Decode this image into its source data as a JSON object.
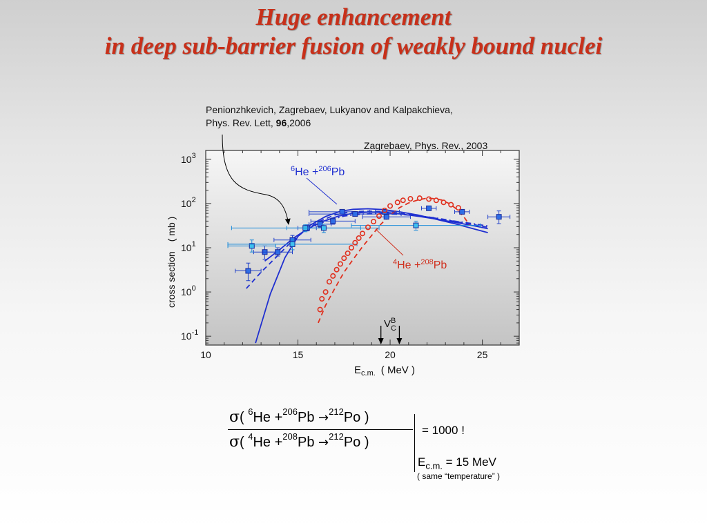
{
  "title": {
    "line1": "Huge enhancement",
    "line2": "in deep sub-barrier fusion of weakly bound nuclei"
  },
  "colors": {
    "title": "#c8301a",
    "he6": "#1f2fd0",
    "he4": "#e0301e",
    "data_point": "#1f66d6"
  },
  "chart_data": {
    "type": "scatter",
    "xlabel": "E",
    "xlabel_sub": "c.m.",
    "xlabel_unit": "( MeV )",
    "ylabel": "cross section",
    "ylabel_unit": "( mb )",
    "xlim": [
      10,
      27
    ],
    "ylim_log10": [
      -1.2,
      3.2
    ],
    "y_scale": "log",
    "grid": false,
    "xticks": [
      10,
      15,
      20,
      25
    ],
    "xtick_labels": [
      "10",
      "15",
      "20",
      "25"
    ],
    "yticks_exp": [
      "-1",
      "0",
      "1",
      "2",
      "3"
    ],
    "ytick_base": "10",
    "annotations": {
      "ref1_line1": "Penionzhkevich, Zagrebaev, Lukyanov and Kalpakchieva,",
      "ref1_line2_pre": "Phys. Rev. Lett, ",
      "ref1_line2_bold": "96",
      "ref1_line2_post": ",2006",
      "ref2": "Zagrebaev, Phys. Rev., 2003",
      "he6_label": {
        "mass_a": "6",
        "a": "He +",
        "mass_b": "206",
        "b": "Pb"
      },
      "he4_label": {
        "mass_a": "4",
        "a": "He +",
        "mass_b": "208",
        "b": "Pb"
      },
      "vcb": {
        "main": "V",
        "sub": "C",
        "sup": "B",
        "arrows_x": [
          19.5,
          20.5
        ]
      }
    },
    "series": [
      {
        "marker": "square-dark",
        "points": [
          {
            "x": 12.3,
            "y": 3,
            "xerr": 0.7,
            "yerr_lo": 1.8,
            "yerr_hi": 4.5
          },
          {
            "x": 13.2,
            "y": 8,
            "xerr": 0.6,
            "yerr_lo": 5.5,
            "yerr_hi": 11
          },
          {
            "x": 13.9,
            "y": 8,
            "xerr": 0.8,
            "yerr_lo": 6.5,
            "yerr_hi": 10
          },
          {
            "x": 14.7,
            "y": 15,
            "xerr": 1.0,
            "yerr_lo": 12,
            "yerr_hi": 19
          },
          {
            "x": 15.5,
            "y": 28,
            "xerr": 0.5,
            "yerr_lo": 24,
            "yerr_hi": 33
          },
          {
            "x": 16.2,
            "y": 34,
            "xerr": 0.6,
            "yerr_lo": 29,
            "yerr_hi": 40
          },
          {
            "x": 16.9,
            "y": 40,
            "xerr": 1.2,
            "yerr_lo": 34,
            "yerr_hi": 47
          },
          {
            "x": 17.4,
            "y": 65,
            "xerr": 1.8,
            "yerr_lo": 58,
            "yerr_hi": 72
          },
          {
            "x": 18.1,
            "y": 58,
            "xerr": 2.5,
            "yerr_lo": 52,
            "yerr_hi": 65
          },
          {
            "x": 19.7,
            "y": 65,
            "xerr": 0.8,
            "yerr_lo": 58,
            "yerr_hi": 72
          },
          {
            "x": 19.8,
            "y": 50,
            "xerr": 1.3,
            "yerr_lo": 45,
            "yerr_hi": 56
          },
          {
            "x": 22.1,
            "y": 78,
            "xerr": 0.4,
            "yerr_lo": 72,
            "yerr_hi": 84
          },
          {
            "x": 23.9,
            "y": 65,
            "xerr": 0.4,
            "yerr_lo": 60,
            "yerr_hi": 70
          },
          {
            "x": 25.9,
            "y": 50,
            "xerr": 0.6,
            "yerr_lo": 35,
            "yerr_hi": 68
          }
        ]
      },
      {
        "marker": "square-light",
        "points": [
          {
            "x": 12.5,
            "y": 11,
            "xerr": 1.3,
            "yerr_lo": 8,
            "yerr_hi": 15
          },
          {
            "x": 14.7,
            "y": 12,
            "xerr": 3.5,
            "yerr_lo": 9,
            "yerr_hi": 15
          },
          {
            "x": 15.4,
            "y": 28,
            "xerr": 4.0,
            "yerr_lo": 23,
            "yerr_hi": 33
          },
          {
            "x": 16.4,
            "y": 28,
            "xerr": 2.0,
            "yerr_lo": 22,
            "yerr_hi": 34
          },
          {
            "x": 21.4,
            "y": 32,
            "xerr": 3.5,
            "yerr_lo": 25,
            "yerr_hi": 40
          }
        ]
      },
      {
        "marker": "circle-open",
        "points": [
          {
            "x": 16.2,
            "y": 0.4
          },
          {
            "x": 16.3,
            "y": 0.7
          },
          {
            "x": 16.5,
            "y": 1.0
          },
          {
            "x": 16.7,
            "y": 1.7
          },
          {
            "x": 16.9,
            "y": 2.3
          },
          {
            "x": 17.1,
            "y": 3.2
          },
          {
            "x": 17.3,
            "y": 4.3
          },
          {
            "x": 17.5,
            "y": 5.8
          },
          {
            "x": 17.7,
            "y": 7.5
          },
          {
            "x": 17.9,
            "y": 10
          },
          {
            "x": 18.1,
            "y": 13
          },
          {
            "x": 18.3,
            "y": 16.5
          },
          {
            "x": 18.5,
            "y": 21
          },
          {
            "x": 18.8,
            "y": 29
          },
          {
            "x": 19.1,
            "y": 39
          },
          {
            "x": 19.4,
            "y": 52
          },
          {
            "x": 19.7,
            "y": 70
          },
          {
            "x": 20.0,
            "y": 88
          },
          {
            "x": 20.4,
            "y": 106
          },
          {
            "x": 20.7,
            "y": 118
          },
          {
            "x": 21.1,
            "y": 128
          },
          {
            "x": 21.6,
            "y": 132
          },
          {
            "x": 22.1,
            "y": 126
          },
          {
            "x": 22.5,
            "y": 118
          },
          {
            "x": 22.9,
            "y": 106
          },
          {
            "x": 23.3,
            "y": 94
          },
          {
            "x": 23.7,
            "y": 80
          }
        ]
      },
      {
        "style": "solid",
        "color": "#1f2fd0",
        "points": [
          [
            12.7,
            0.07
          ],
          [
            13.5,
            0.9
          ],
          [
            14.3,
            6
          ],
          [
            15.0,
            18
          ],
          [
            15.7,
            33
          ],
          [
            16.5,
            51
          ],
          [
            17.3,
            67
          ],
          [
            18.0,
            74
          ],
          [
            18.8,
            76
          ],
          [
            19.6,
            73
          ],
          [
            20.5,
            65
          ],
          [
            21.5,
            55
          ],
          [
            22.5,
            44
          ],
          [
            23.5,
            35
          ],
          [
            24.5,
            27
          ],
          [
            25.3,
            22
          ]
        ]
      },
      {
        "style": "solid",
        "color": "#1f2fd0",
        "points": [
          [
            13.2,
            5
          ],
          [
            14.0,
            9
          ],
          [
            14.8,
            17
          ],
          [
            15.6,
            28
          ],
          [
            16.4,
            40
          ],
          [
            17.2,
            52
          ],
          [
            18.0,
            60
          ],
          [
            18.8,
            64
          ],
          [
            19.6,
            63
          ],
          [
            20.6,
            58
          ],
          [
            21.6,
            51
          ],
          [
            22.6,
            44
          ],
          [
            23.6,
            37
          ],
          [
            24.6,
            31
          ],
          [
            25.3,
            27
          ]
        ]
      },
      {
        "style": "dashed",
        "color": "#1f2fd0",
        "points": [
          [
            12.2,
            1.2
          ],
          [
            13.0,
            2.8
          ],
          [
            13.8,
            6
          ],
          [
            14.6,
            13
          ],
          [
            15.4,
            25
          ],
          [
            16.2,
            40
          ],
          [
            17.0,
            55
          ],
          [
            17.8,
            64
          ],
          [
            18.6,
            67
          ],
          [
            19.4,
            66
          ],
          [
            20.4,
            61
          ],
          [
            21.4,
            54
          ],
          [
            22.4,
            47
          ],
          [
            23.4,
            40
          ],
          [
            24.4,
            34
          ],
          [
            25.3,
            29
          ]
        ]
      },
      {
        "style": "dashdot",
        "color": "#1f2fd0",
        "points": [
          [
            15.5,
            26
          ],
          [
            16.5,
            40
          ],
          [
            17.5,
            52
          ],
          [
            18.5,
            58
          ],
          [
            19.5,
            59
          ],
          [
            20.5,
            57
          ],
          [
            21.5,
            53
          ],
          [
            22.5,
            47
          ],
          [
            23.5,
            40
          ],
          [
            24.5,
            35
          ],
          [
            25.3,
            31
          ]
        ]
      },
      {
        "style": "dashed",
        "color": "#e0301e",
        "points": [
          [
            16.1,
            0.2
          ],
          [
            16.5,
            0.5
          ],
          [
            17.0,
            1.2
          ],
          [
            17.5,
            2.8
          ],
          [
            18.0,
            5.5
          ],
          [
            18.5,
            10.5
          ],
          [
            19.0,
            19
          ],
          [
            19.5,
            34
          ],
          [
            20.0,
            55
          ],
          [
            20.5,
            80
          ],
          [
            21.0,
            103
          ],
          [
            21.5,
            120
          ],
          [
            21.9,
            130
          ],
          [
            22.3,
            130
          ],
          [
            22.8,
            120
          ],
          [
            23.2,
            100
          ],
          [
            23.6,
            75
          ],
          [
            24.0,
            50
          ],
          [
            24.3,
            33
          ]
        ]
      }
    ]
  },
  "formula": {
    "sigma": "σ",
    "num": {
      "open": "( ",
      "m1": "6",
      "p1": "He +",
      "m2": "206",
      "p2": "Pb",
      "arrow": "→",
      "m3": "212",
      "p3": "Po )"
    },
    "den": {
      "open": "( ",
      "m1": "4",
      "p1": "He +",
      "m2": "208",
      "p2": "Pb",
      "arrow": "→",
      "m3": "212",
      "p3": "Po )"
    },
    "result": "= 1000 !",
    "cond_e": "E",
    "cond_sub": "c.m.",
    "cond_val": "= 15 MeV",
    "note": "( same  “temperature” )"
  }
}
